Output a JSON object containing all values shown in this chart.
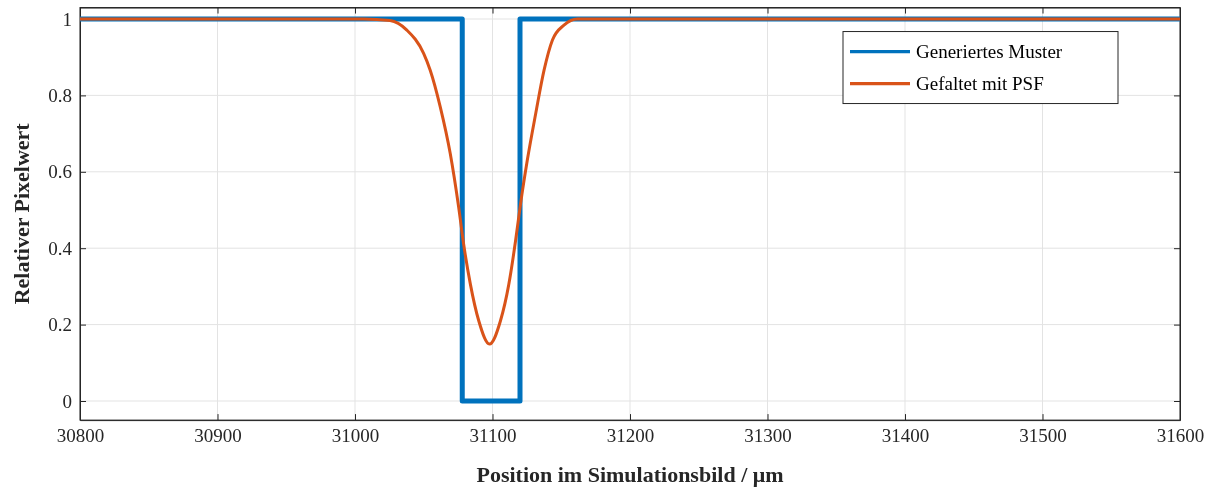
{
  "chart_data": {
    "type": "line",
    "xlabel": "Position im Simulationsbild / μm",
    "ylabel": "Relativer Pixelwert",
    "xlim": [
      30800,
      31600
    ],
    "xticks": [
      30800,
      30900,
      31000,
      31100,
      31200,
      31300,
      31400,
      31500,
      31600
    ],
    "ylim": [
      -0.05,
      1.03
    ],
    "yticks": [
      0,
      0.2,
      0.4,
      0.6,
      0.8,
      1
    ],
    "grid": true,
    "legend": "top right",
    "marker": "none",
    "line_style": "solid",
    "series": [
      {
        "name": "Generiertes Muster",
        "color": "#0072bd",
        "x": [
          30800,
          31078,
          31078,
          31120,
          31120,
          31600
        ],
        "values": [
          1,
          1,
          0,
          0,
          1,
          1
        ]
      },
      {
        "name": "Gefaltet mit PSF",
        "color": "#d95319",
        "x": [
          30800,
          31006,
          31025.5,
          31037.7,
          31049.9,
          31054.7,
          31062,
          31069.3,
          31075.4,
          31079,
          31083.9,
          31090,
          31097.8,
          31105.8,
          31111.9,
          31116.8,
          31120.4,
          31125.3,
          31131.4,
          31137.5,
          31143.6,
          31152,
          31161.8,
          31600
        ],
        "values": [
          1,
          1,
          0.996,
          0.971,
          0.91,
          0.866,
          0.77,
          0.647,
          0.507,
          0.411,
          0.306,
          0.21,
          0.149,
          0.21,
          0.306,
          0.42,
          0.516,
          0.63,
          0.752,
          0.866,
          0.945,
          0.984,
          1,
          1
        ]
      }
    ]
  }
}
